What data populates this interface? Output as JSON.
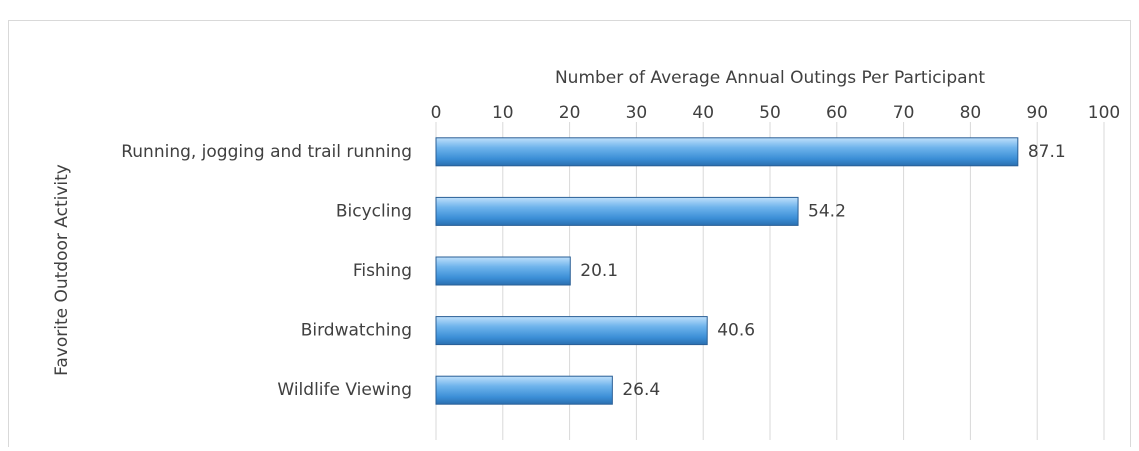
{
  "chart_data": {
    "type": "bar",
    "orientation": "horizontal",
    "x_axis_title": "Number of Average Annual Outings Per Participant",
    "y_axis_title": "Favorite Outdoor Activity",
    "categories": [
      "Running, jogging and trail running",
      "Bicycling",
      "Fishing",
      "Birdwatching",
      "Wildlife Viewing"
    ],
    "values": [
      87.1,
      54.2,
      20.1,
      40.6,
      26.4
    ],
    "color": "#4f9fe0",
    "xlim": [
      0,
      100
    ],
    "xticks": [
      0,
      10,
      20,
      30,
      40,
      50,
      60,
      70,
      80,
      90,
      100
    ],
    "grid": true
  }
}
